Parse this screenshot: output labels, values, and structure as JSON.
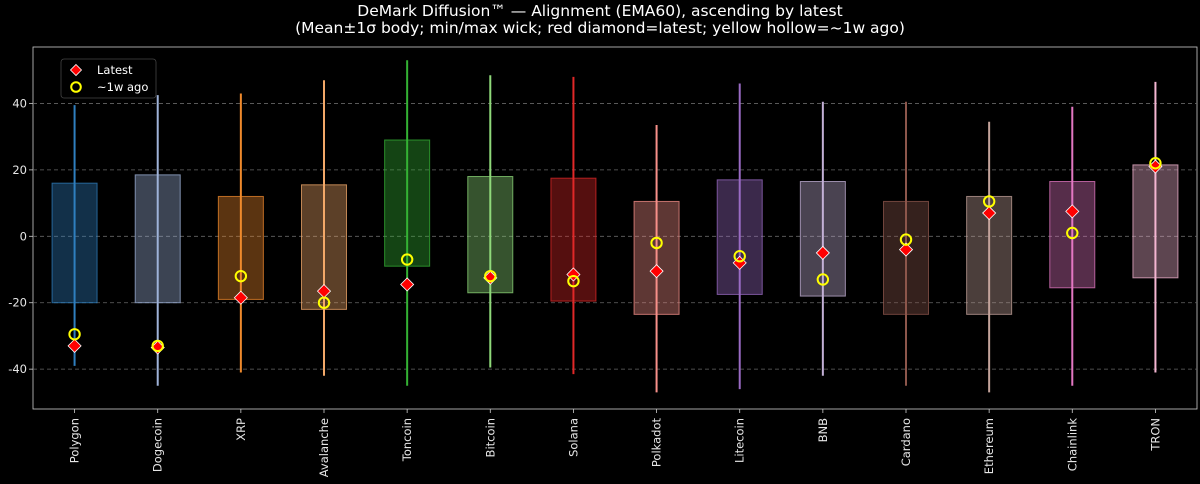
{
  "chart_data": {
    "type": "box",
    "title": "DeMark Diffusion™ — Alignment (EMA60), ascending by latest",
    "subtitle": "(Mean±1σ body; min/max wick; red diamond=latest; yellow hollow=~1w ago)",
    "xlabel": "",
    "ylabel": "",
    "ylim": [
      -52,
      57
    ],
    "yticks": [
      -40,
      -20,
      0,
      20,
      40
    ],
    "grid": true,
    "legend_position": "top-left",
    "legend": [
      {
        "label": "Latest",
        "marker": "red-diamond"
      },
      {
        "label": "~1w ago",
        "marker": "yellow-hollow-circle"
      }
    ],
    "categories": [
      "Polygon",
      "Dogecoin",
      "XRP",
      "Avalanche",
      "Toncoin",
      "Bitcoin",
      "Solana",
      "Polkadot",
      "Litecoin",
      "BNB",
      "Cardano",
      "Ethereum",
      "Chainlink",
      "TRON"
    ],
    "series": [
      {
        "name": "Polygon",
        "mean_minus_sd": -20,
        "mean_plus_sd": 16,
        "min": -39,
        "max": 39.5,
        "latest": -33,
        "week_ago": -29.5,
        "color": "#2f7fbf"
      },
      {
        "name": "Dogecoin",
        "mean_minus_sd": -20,
        "mean_plus_sd": 18.5,
        "min": -45,
        "max": 42.5,
        "latest": -33.5,
        "week_ago": -33,
        "color": "#9fb3d9"
      },
      {
        "name": "XRP",
        "mean_minus_sd": -19,
        "mean_plus_sd": 12,
        "min": -41,
        "max": 43,
        "latest": -18.5,
        "week_ago": -12,
        "color": "#f08a2c"
      },
      {
        "name": "Avalanche",
        "mean_minus_sd": -22,
        "mean_plus_sd": 15.5,
        "min": -42,
        "max": 47,
        "latest": -16.5,
        "week_ago": -20,
        "color": "#f2a869"
      },
      {
        "name": "Toncoin",
        "mean_minus_sd": -9,
        "mean_plus_sd": 29,
        "min": -45,
        "max": 53,
        "latest": -14.5,
        "week_ago": -7,
        "color": "#34b234"
      },
      {
        "name": "Bitcoin",
        "mean_minus_sd": -17,
        "mean_plus_sd": 18,
        "min": -39.5,
        "max": 48.5,
        "latest": -12.5,
        "week_ago": -12,
        "color": "#8fd97a"
      },
      {
        "name": "Solana",
        "mean_minus_sd": -19.5,
        "mean_plus_sd": 17.5,
        "min": -41.5,
        "max": 48,
        "latest": -11.5,
        "week_ago": -13.5,
        "color": "#e02828"
      },
      {
        "name": "Polkadot",
        "mean_minus_sd": -23.5,
        "mean_plus_sd": 10.5,
        "min": -47,
        "max": 33.5,
        "latest": -10.5,
        "week_ago": -2,
        "color": "#f7908a"
      },
      {
        "name": "Litecoin",
        "mean_minus_sd": -17.5,
        "mean_plus_sd": 17,
        "min": -46,
        "max": 46,
        "latest": -8,
        "week_ago": -6,
        "color": "#9a6bc4"
      },
      {
        "name": "BNB",
        "mean_minus_sd": -18,
        "mean_plus_sd": 16.5,
        "min": -42,
        "max": 40.5,
        "latest": -5,
        "week_ago": -13,
        "color": "#c3b0d6"
      },
      {
        "name": "Cardano",
        "mean_minus_sd": -23.5,
        "mean_plus_sd": 10.5,
        "min": -45,
        "max": 40.5,
        "latest": -4,
        "week_ago": -1,
        "color": "#8c564b"
      },
      {
        "name": "Ethereum",
        "mean_minus_sd": -23.5,
        "mean_plus_sd": 12,
        "min": -47,
        "max": 34.5,
        "latest": 7,
        "week_ago": 10.5,
        "color": "#c4a39b"
      },
      {
        "name": "Chainlink",
        "mean_minus_sd": -15.5,
        "mean_plus_sd": 16.5,
        "min": -45,
        "max": 39,
        "latest": 7.5,
        "week_ago": 1,
        "color": "#e377c2"
      },
      {
        "name": "TRON",
        "mean_minus_sd": -12.5,
        "mean_plus_sd": 21.5,
        "min": -41,
        "max": 46.5,
        "latest": 21,
        "week_ago": 22,
        "color": "#f4b6d2"
      }
    ]
  }
}
